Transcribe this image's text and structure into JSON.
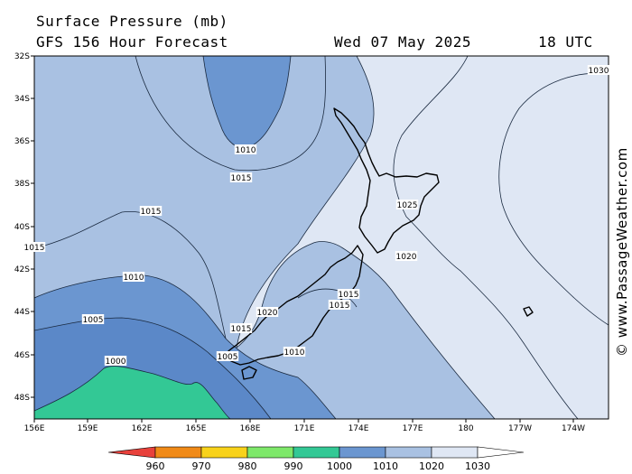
{
  "header": {
    "title": "Surface Pressure (mb)",
    "forecast": "GFS 156 Hour Forecast",
    "date": "Wed 07 May 2025",
    "time": "18 UTC"
  },
  "credit": "© www.PassageWeather.com",
  "map": {
    "lat_labels": [
      "32S",
      "34S",
      "36S",
      "38S",
      "40S",
      "42S",
      "44S",
      "46S",
      "48S"
    ],
    "lon_labels": [
      "156E",
      "159E",
      "162E",
      "165E",
      "168E",
      "171E",
      "174E",
      "177E",
      "180",
      "177W",
      "174W"
    ],
    "isobar_labels": [
      "1010",
      "1015",
      "1015",
      "1015",
      "1010",
      "1005",
      "1000",
      "1015",
      "1020",
      "1005",
      "1010",
      "1015",
      "1015",
      "1020",
      "1025",
      "1030"
    ]
  },
  "colorbar": {
    "labels": [
      "960",
      "970",
      "980",
      "990",
      "1000",
      "1010",
      "1020",
      "1030"
    ],
    "colors": [
      "#e8413c",
      "#f08a18",
      "#f8d21a",
      "#7ee86a",
      "#33c895",
      "#6b96d0",
      "#a9c1e2",
      "#dfe7f4",
      "#ffffff"
    ]
  },
  "colors": {
    "band_1000": "#33c895",
    "band_1005": "#5b88c8",
    "band_1010": "#6b96d0",
    "band_1015": "#a9c1e2",
    "band_1020": "#dfe7f4",
    "land": "#000000"
  }
}
